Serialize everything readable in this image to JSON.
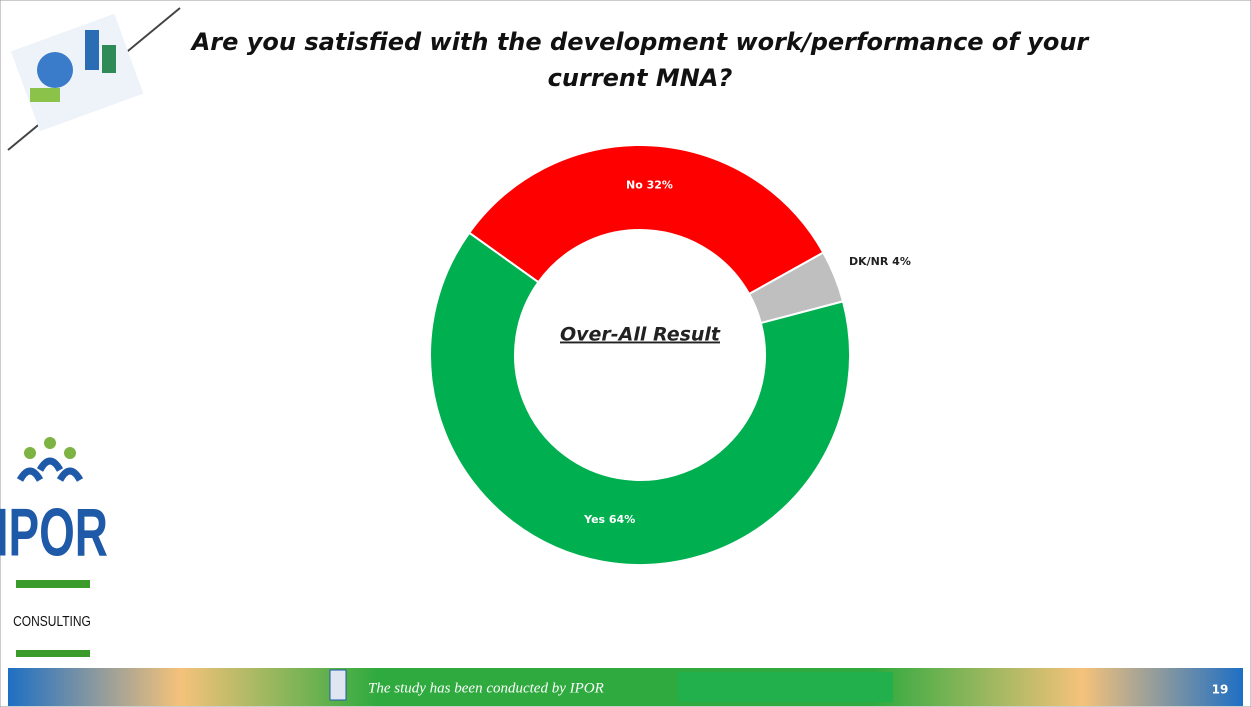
{
  "chart_data": {
    "type": "donut",
    "title": "Are you satisfied with the development work/performance of your current MNA?",
    "center_label": "Over-All Result",
    "values": [
      32,
      4,
      64
    ],
    "value_labels": [
      "No 32%",
      "DK/NR 4%",
      "Yes 64%"
    ],
    "colors": [
      "#ff0000",
      "#bfbfbf",
      "#00b050"
    ]
  },
  "logo": {
    "name": "IPOR",
    "tagline": "CONSULTING"
  },
  "footer": {
    "text": "The study has been conducted by IPOR",
    "page": "19"
  }
}
